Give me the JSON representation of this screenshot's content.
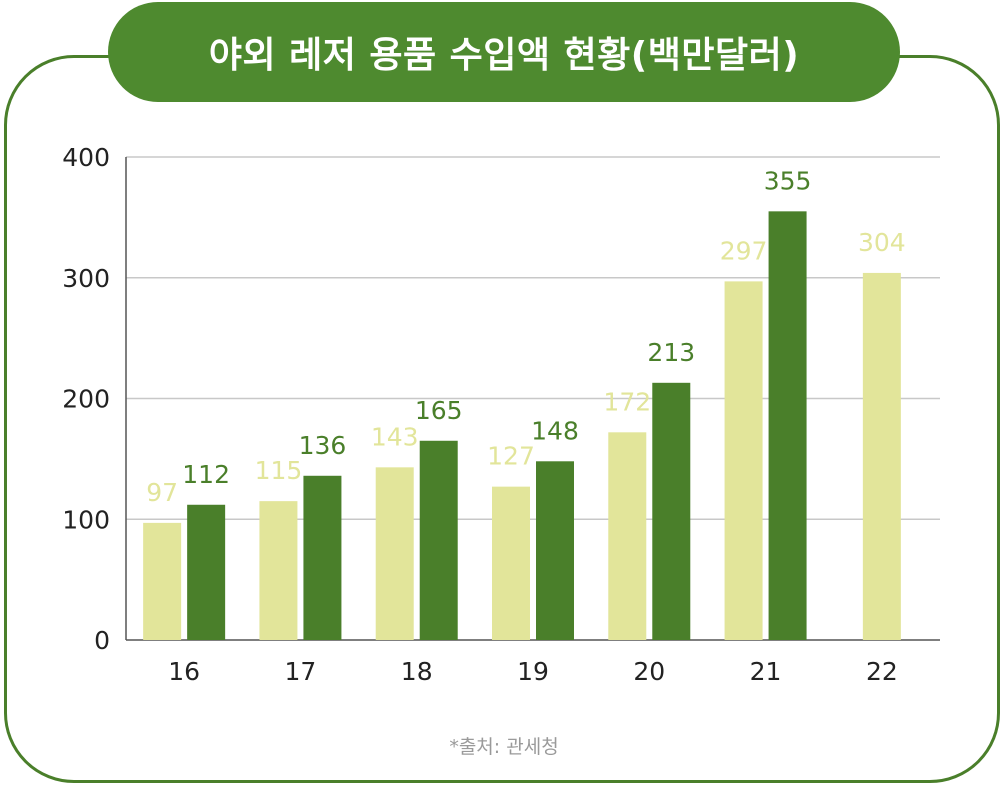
{
  "title": "야외 레저 용품 수입액 현황(백만달러)",
  "source": "*출처: 관세청",
  "colors": {
    "frame": "#4a7f2a",
    "title_bg": "#4e8a2f",
    "light_bar": "#e2e59a",
    "dark_bar": "#4a7f2a",
    "grid": "#c8c8c8"
  },
  "chart_data": {
    "type": "bar",
    "categories": [
      "16",
      "17",
      "18",
      "19",
      "20",
      "21",
      "22"
    ],
    "series": [
      {
        "values": [
          97,
          115,
          143,
          127,
          172,
          297,
          304
        ]
      },
      {
        "values": [
          112,
          136,
          165,
          148,
          213,
          355,
          null
        ]
      }
    ],
    "y_ticks": [
      0,
      100,
      200,
      300,
      400
    ],
    "ylim": [
      0,
      400
    ],
    "grid": true
  }
}
